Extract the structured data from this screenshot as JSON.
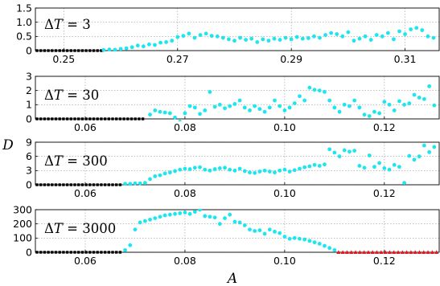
{
  "figure": {
    "ylabel": "D",
    "xlabel": "A"
  },
  "colors": {
    "series": "#1ee6f0",
    "zero_markers": "#000000",
    "triangles": "#e8161e"
  },
  "chart_data": [
    {
      "type": "scatter",
      "panel_label": "ΔT = 3",
      "label_main": "ΔT = ",
      "label_value": "3",
      "xlim": [
        0.245,
        0.316
      ],
      "ylim": [
        0,
        1.5
      ],
      "xticks": [
        0.25,
        0.27,
        0.29,
        0.31
      ],
      "xtick_labels": [
        "0.25",
        "0.27",
        "0.29",
        "0.31"
      ],
      "yticks": [
        0,
        0.5,
        1.0,
        1.5
      ],
      "ytick_labels": [
        "0",
        "0.5",
        "1.0",
        "1.5"
      ],
      "zero_series": {
        "x_start": 0.245,
        "x_end": 0.2565,
        "y": 0,
        "marker": "square",
        "color": "#000000"
      },
      "series": [
        {
          "marker": "circle",
          "color": "#1ee6f0",
          "x": [
            0.257,
            0.258,
            0.259,
            0.26,
            0.261,
            0.262,
            0.263,
            0.264,
            0.265,
            0.266,
            0.267,
            0.268,
            0.269,
            0.27,
            0.271,
            0.272,
            0.273,
            0.274,
            0.275,
            0.276,
            0.277,
            0.278,
            0.279,
            0.28,
            0.281,
            0.282,
            0.283,
            0.284,
            0.285,
            0.286,
            0.287,
            0.288,
            0.289,
            0.29,
            0.291,
            0.292,
            0.293,
            0.294,
            0.295,
            0.296,
            0.297,
            0.298,
            0.299,
            0.3,
            0.301,
            0.302,
            0.303,
            0.304,
            0.305,
            0.306,
            0.307,
            0.308,
            0.309,
            0.31,
            0.311,
            0.312,
            0.313,
            0.314,
            0.315
          ],
          "y": [
            0.02,
            0.04,
            0.03,
            0.06,
            0.08,
            0.12,
            0.18,
            0.15,
            0.22,
            0.2,
            0.28,
            0.3,
            0.35,
            0.48,
            0.52,
            0.6,
            0.45,
            0.55,
            0.6,
            0.52,
            0.5,
            0.45,
            0.4,
            0.35,
            0.45,
            0.38,
            0.42,
            0.3,
            0.4,
            0.35,
            0.42,
            0.38,
            0.45,
            0.4,
            0.48,
            0.42,
            0.44,
            0.5,
            0.45,
            0.55,
            0.62,
            0.58,
            0.5,
            0.65,
            0.35,
            0.42,
            0.5,
            0.38,
            0.55,
            0.5,
            0.62,
            0.4,
            0.68,
            0.58,
            0.75,
            0.8,
            0.72,
            0.5,
            0.45
          ]
        }
      ]
    },
    {
      "type": "scatter",
      "panel_label": "ΔT = 30",
      "label_main": "ΔT = ",
      "label_value": "30",
      "xlim": [
        0.05,
        0.131
      ],
      "ylim": [
        0,
        3
      ],
      "xticks": [
        0.06,
        0.08,
        0.1,
        0.12
      ],
      "xtick_labels": [
        "0.06",
        "0.08",
        "0.10",
        "0.12"
      ],
      "yticks": [
        0,
        1,
        2,
        3
      ],
      "ytick_labels": [
        "0",
        "1",
        "2",
        "3"
      ],
      "zero_series": {
        "x_start": 0.05,
        "x_end": 0.0715,
        "y": 0,
        "marker": "square",
        "color": "#000000"
      },
      "series": [
        {
          "marker": "circle",
          "color": "#1ee6f0",
          "x": [
            0.073,
            0.074,
            0.075,
            0.076,
            0.077,
            0.078,
            0.079,
            0.08,
            0.081,
            0.082,
            0.083,
            0.084,
            0.085,
            0.086,
            0.087,
            0.088,
            0.089,
            0.09,
            0.091,
            0.092,
            0.093,
            0.094,
            0.095,
            0.096,
            0.097,
            0.098,
            0.099,
            0.1,
            0.101,
            0.102,
            0.103,
            0.104,
            0.105,
            0.106,
            0.107,
            0.108,
            0.109,
            0.11,
            0.111,
            0.112,
            0.113,
            0.114,
            0.115,
            0.116,
            0.117,
            0.118,
            0.119,
            0.12,
            0.121,
            0.122,
            0.123,
            0.124,
            0.125,
            0.126,
            0.127,
            0.128,
            0.129,
            0.13
          ],
          "y": [
            0.3,
            0.6,
            0.5,
            0.45,
            0.4,
            0.1,
            -0.2,
            0.4,
            0.9,
            0.8,
            0.35,
            0.6,
            1.9,
            0.85,
            1.0,
            0.75,
            0.9,
            1.05,
            1.3,
            0.8,
            0.6,
            0.9,
            0.7,
            0.5,
            0.8,
            1.3,
            0.9,
            0.6,
            0.8,
            1.1,
            1.6,
            1.3,
            2.2,
            2.05,
            2.0,
            1.9,
            1.3,
            0.8,
            0.5,
            1.0,
            0.9,
            1.3,
            0.8,
            0.3,
            0.2,
            0.5,
            0.4,
            1.2,
            1.0,
            0.6,
            1.25,
            1.0,
            1.1,
            1.7,
            1.5,
            1.4,
            2.3,
            0.95
          ]
        }
      ]
    },
    {
      "type": "scatter",
      "panel_label": "ΔT = 300",
      "label_main": "ΔT = ",
      "label_value": "300",
      "xlim": [
        0.05,
        0.131
      ],
      "ylim": [
        0,
        9
      ],
      "xticks": [
        0.06,
        0.08,
        0.1,
        0.12
      ],
      "xtick_labels": [
        "0.06",
        "0.08",
        "0.10",
        "0.12"
      ],
      "yticks": [
        0,
        3,
        6,
        9
      ],
      "ytick_labels": [
        "0",
        "3",
        "6",
        "9"
      ],
      "zero_series": {
        "x_start": 0.05,
        "x_end": 0.067,
        "y": 0,
        "marker": "square",
        "color": "#000000"
      },
      "series": [
        {
          "marker": "circle",
          "color": "#1ee6f0",
          "x": [
            0.068,
            0.069,
            0.07,
            0.071,
            0.072,
            0.073,
            0.074,
            0.075,
            0.076,
            0.077,
            0.078,
            0.079,
            0.08,
            0.081,
            0.082,
            0.083,
            0.084,
            0.085,
            0.086,
            0.087,
            0.088,
            0.089,
            0.09,
            0.091,
            0.092,
            0.093,
            0.094,
            0.095,
            0.096,
            0.097,
            0.098,
            0.099,
            0.1,
            0.101,
            0.102,
            0.103,
            0.104,
            0.105,
            0.106,
            0.107,
            0.108,
            0.109,
            0.11,
            0.111,
            0.112,
            0.113,
            0.114,
            0.115,
            0.116,
            0.117,
            0.118,
            0.119,
            0.12,
            0.121,
            0.122,
            0.123,
            0.124,
            0.125,
            0.126,
            0.127,
            0.128,
            0.129,
            0.13
          ],
          "y": [
            0.2,
            0.2,
            0.3,
            0.3,
            0.4,
            1.2,
            1.8,
            2.0,
            2.4,
            2.6,
            2.9,
            3.2,
            3.4,
            3.3,
            3.6,
            3.7,
            3.2,
            3.0,
            3.3,
            3.5,
            3.6,
            3.2,
            3.0,
            3.4,
            2.9,
            2.6,
            2.5,
            2.8,
            3.0,
            2.8,
            2.6,
            3.0,
            3.2,
            2.8,
            3.1,
            3.4,
            3.7,
            3.9,
            4.2,
            4.0,
            4.3,
            7.5,
            6.8,
            6.0,
            7.3,
            7.0,
            7.2,
            4.0,
            3.6,
            6.2,
            3.8,
            4.6,
            3.5,
            3.2,
            4.2,
            3.8,
            0.4,
            6.1,
            5.3,
            6.0,
            8.3,
            6.9,
            8.0
          ]
        }
      ]
    },
    {
      "type": "scatter",
      "panel_label": "ΔT = 3000",
      "label_main": "ΔT = ",
      "label_value": "3000",
      "xlim": [
        0.05,
        0.131
      ],
      "ylim": [
        0,
        300
      ],
      "xticks": [
        0.06,
        0.08,
        0.1,
        0.12
      ],
      "xtick_labels": [
        "0.06",
        "0.08",
        "0.10",
        "0.12"
      ],
      "yticks": [
        0,
        100,
        200,
        300
      ],
      "ytick_labels": [
        "0",
        "100",
        "200",
        "300"
      ],
      "zero_series": {
        "x_start": 0.05,
        "x_end": 0.067,
        "y": 0,
        "marker": "square",
        "color": "#000000"
      },
      "triangle_series": {
        "x_start": 0.1108,
        "x_end": 0.1305,
        "y": 0,
        "marker": "triangle",
        "color": "#e8161e"
      },
      "series": [
        {
          "marker": "circle",
          "color": "#1ee6f0",
          "x": [
            0.068,
            0.069,
            0.07,
            0.071,
            0.072,
            0.073,
            0.074,
            0.075,
            0.076,
            0.077,
            0.078,
            0.079,
            0.08,
            0.081,
            0.082,
            0.083,
            0.084,
            0.085,
            0.086,
            0.087,
            0.088,
            0.089,
            0.09,
            0.091,
            0.092,
            0.093,
            0.094,
            0.095,
            0.096,
            0.097,
            0.098,
            0.099,
            0.1,
            0.101,
            0.102,
            0.103,
            0.104,
            0.105,
            0.106,
            0.107,
            0.108,
            0.109,
            0.11
          ],
          "y": [
            15,
            50,
            160,
            210,
            220,
            230,
            240,
            250,
            260,
            265,
            270,
            275,
            280,
            270,
            285,
            300,
            255,
            250,
            245,
            200,
            240,
            265,
            215,
            210,
            190,
            160,
            150,
            155,
            130,
            160,
            145,
            135,
            110,
            95,
            100,
            95,
            90,
            80,
            70,
            60,
            45,
            30,
            15
          ]
        }
      ]
    }
  ]
}
